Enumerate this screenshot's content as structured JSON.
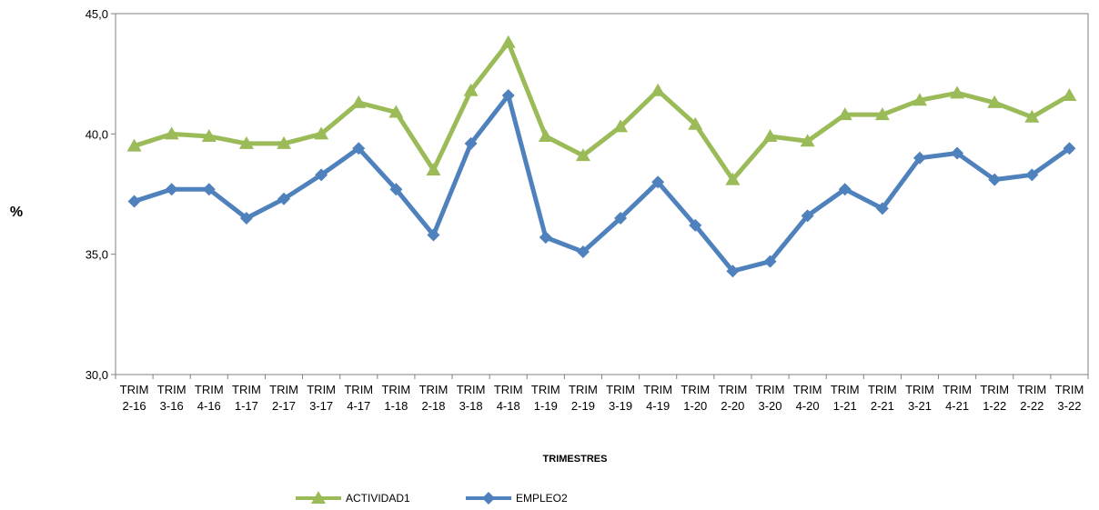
{
  "chart_data": {
    "type": "line",
    "categories": [
      [
        "TRIM",
        "2-16"
      ],
      [
        "TRIM",
        "3-16"
      ],
      [
        "TRIM",
        "4-16"
      ],
      [
        "TRIM",
        "1-17"
      ],
      [
        "TRIM",
        "2-17"
      ],
      [
        "TRIM",
        "3-17"
      ],
      [
        "TRIM",
        "4-17"
      ],
      [
        "TRIM",
        "1-18"
      ],
      [
        "TRIM",
        "2-18"
      ],
      [
        "TRIM",
        "3-18"
      ],
      [
        "TRIM",
        "4-18"
      ],
      [
        "TRIM",
        "1-19"
      ],
      [
        "TRIM",
        "2-19"
      ],
      [
        "TRIM",
        "3-19"
      ],
      [
        "TRIM",
        "4-19"
      ],
      [
        "TRIM",
        "1-20"
      ],
      [
        "TRIM",
        "2-20"
      ],
      [
        "TRIM",
        "3-20"
      ],
      [
        "TRIM",
        "4-20"
      ],
      [
        "TRIM",
        "1-21"
      ],
      [
        "TRIM",
        "2-21"
      ],
      [
        "TRIM",
        "3-21"
      ],
      [
        "TRIM",
        "4-21"
      ],
      [
        "TRIM",
        "1-22"
      ],
      [
        "TRIM",
        "2-22"
      ],
      [
        "TRIM",
        "3-22"
      ]
    ],
    "series": [
      {
        "name": "ACTIVIDAD1",
        "color": "#9BBB59",
        "marker": "triangle",
        "values": [
          39.5,
          40.0,
          39.9,
          39.6,
          39.6,
          40.0,
          41.3,
          40.9,
          38.5,
          41.8,
          43.8,
          39.9,
          39.1,
          40.3,
          41.8,
          40.4,
          38.1,
          39.9,
          39.7,
          40.8,
          40.8,
          41.4,
          41.7,
          41.3,
          40.7,
          41.6
        ]
      },
      {
        "name": "EMPLEO2",
        "color": "#4F81BD",
        "marker": "diamond",
        "values": [
          37.2,
          37.7,
          37.7,
          36.5,
          37.3,
          38.3,
          39.4,
          37.7,
          35.8,
          39.6,
          41.6,
          35.7,
          35.1,
          36.5,
          38.0,
          36.2,
          34.3,
          34.7,
          36.6,
          37.7,
          36.9,
          39.0,
          39.2,
          38.1,
          38.3,
          39.4
        ]
      }
    ],
    "xlabel": "TRIMESTRES",
    "ylabel": "%",
    "ylim": [
      30,
      45
    ],
    "yticks": [
      "30,0",
      "35,0",
      "40,0",
      "45,0"
    ],
    "grid": false,
    "legend_position": "bottom-center"
  }
}
